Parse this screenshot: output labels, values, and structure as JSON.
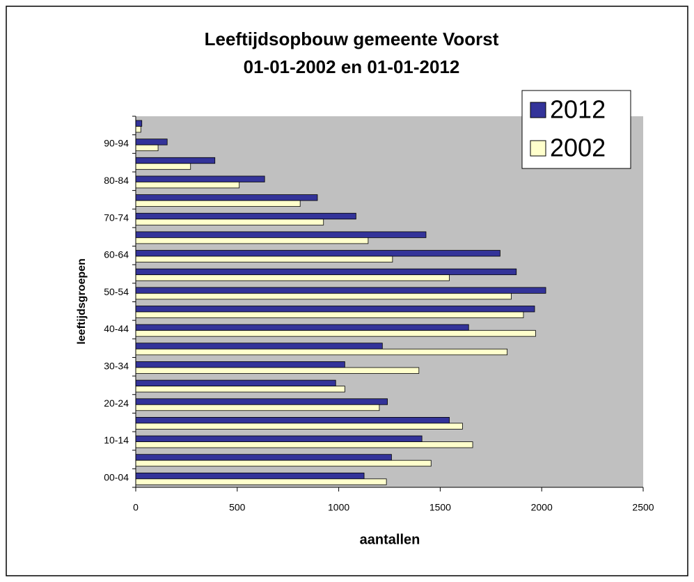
{
  "chart_data": {
    "type": "barh",
    "title": "Leeftijdsopbouw gemeente Voorst",
    "subtitle": "01-01-2002 en 01-01-2012",
    "xlabel": "aantallen",
    "ylabel": "leeftijdsgroepen",
    "categories": [
      "00-04",
      null,
      "10-14",
      null,
      "20-24",
      null,
      "30-34",
      null,
      "40-44",
      null,
      "50-54",
      null,
      "60-64",
      null,
      "70-74",
      null,
      "80-84",
      null,
      "90-94",
      null
    ],
    "series": [
      {
        "name": "2012",
        "color": "#333399",
        "values": [
          1125,
          1260,
          1410,
          1545,
          1240,
          985,
          1030,
          1215,
          1640,
          1965,
          2020,
          1875,
          1795,
          1430,
          1085,
          895,
          635,
          390,
          155,
          30
        ]
      },
      {
        "name": "2002",
        "color": "#ffffcc",
        "values": [
          1235,
          1455,
          1660,
          1610,
          1200,
          1030,
          1395,
          1830,
          1970,
          1910,
          1850,
          1545,
          1265,
          1145,
          925,
          810,
          510,
          270,
          110,
          25
        ]
      }
    ],
    "xlim": [
      0,
      2500
    ],
    "xticks": [
      0,
      500,
      1000,
      1500,
      2000,
      2500
    ],
    "plot_background": "#c0c0c0",
    "legend": "top-right"
  }
}
